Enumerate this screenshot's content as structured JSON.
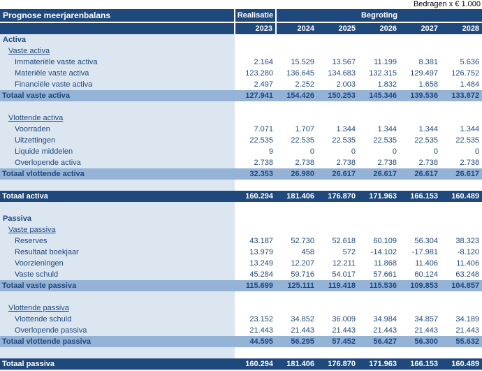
{
  "note": "Bedragen x € 1.000",
  "header": {
    "title": "Prognose meerjarenbalans",
    "realisatie": "Realisatie",
    "begroting": "Begroting",
    "years": [
      "2023",
      "2024",
      "2025",
      "2026",
      "2027",
      "2028"
    ]
  },
  "colors": {
    "dark_blue": "#1F497D",
    "band_blue": "#95B3D7",
    "light_blue": "#DCE6F1",
    "header_text": "#FFFFFF",
    "body_text": "#1F497D"
  },
  "rows": [
    {
      "type": "section",
      "label": "Activa",
      "values": [
        "",
        "",
        "",
        "",
        "",
        ""
      ]
    },
    {
      "type": "subheader",
      "label": "Vaste activa",
      "values": [
        "",
        "",
        "",
        "",
        "",
        ""
      ]
    },
    {
      "type": "item",
      "label": "Immateriële vaste activa",
      "values": [
        "2.164",
        "15.529",
        "13.567",
        "11.199",
        "8.381",
        "5.636"
      ]
    },
    {
      "type": "item",
      "label": "Materiële vaste activa",
      "values": [
        "123.280",
        "136.645",
        "134.683",
        "132.315",
        "129.497",
        "126.752"
      ]
    },
    {
      "type": "item",
      "label": "Financiële vaste activa",
      "values": [
        "2.497",
        "2.252",
        "2.003",
        "1.832",
        "1.658",
        "1.484"
      ]
    },
    {
      "type": "subtotal",
      "label": "Totaal vaste activa",
      "values": [
        "127.941",
        "154.426",
        "150.253",
        "145.346",
        "139.536",
        "133.872"
      ]
    },
    {
      "type": "spacer",
      "label": "",
      "values": [
        "",
        "",
        "",
        "",
        "",
        ""
      ]
    },
    {
      "type": "subheader",
      "label": "Vlottende activa",
      "values": [
        "",
        "",
        "",
        "",
        "",
        ""
      ]
    },
    {
      "type": "item",
      "label": "Voorraden",
      "values": [
        "7.071",
        "1.707",
        "1.344",
        "1.344",
        "1.344",
        "1.344"
      ]
    },
    {
      "type": "item",
      "label": "Uitzettingen",
      "values": [
        "22.535",
        "22.535",
        "22.535",
        "22.535",
        "22.535",
        "22.535"
      ]
    },
    {
      "type": "item",
      "label": "Liquide middelen",
      "values": [
        "9",
        "0",
        "0",
        "0",
        "0",
        "0"
      ]
    },
    {
      "type": "item",
      "label": "Overlopende activa",
      "values": [
        "2.738",
        "2.738",
        "2.738",
        "2.738",
        "2.738",
        "2.738"
      ]
    },
    {
      "type": "subtotal",
      "label": "Totaal vlottende activa",
      "values": [
        "32.353",
        "26.980",
        "26.617",
        "26.617",
        "26.617",
        "26.617"
      ]
    },
    {
      "type": "spacer",
      "label": "",
      "values": [
        "",
        "",
        "",
        "",
        "",
        ""
      ]
    },
    {
      "type": "grandtotal",
      "label": "Totaal activa",
      "values": [
        "160.294",
        "181.406",
        "176.870",
        "171.963",
        "166.153",
        "160.489"
      ]
    },
    {
      "type": "spacer",
      "label": "",
      "values": [
        "",
        "",
        "",
        "",
        "",
        ""
      ]
    },
    {
      "type": "section",
      "label": "Passiva",
      "values": [
        "",
        "",
        "",
        "",
        "",
        ""
      ]
    },
    {
      "type": "subheader",
      "label": "Vaste passiva",
      "values": [
        "",
        "",
        "",
        "",
        "",
        ""
      ]
    },
    {
      "type": "item",
      "label": "Reserves",
      "values": [
        "43.187",
        "52.730",
        "52.618",
        "60.109",
        "56.304",
        "38.323"
      ]
    },
    {
      "type": "item",
      "label": "Resultaat boekjaar",
      "values": [
        "13.979",
        "458",
        "572",
        "-14.102",
        "-17.981",
        "-8.120"
      ]
    },
    {
      "type": "item",
      "label": "Voorzieningen",
      "values": [
        "13.249",
        "12.207",
        "12.211",
        "11.868",
        "11.406",
        "11.406"
      ]
    },
    {
      "type": "item",
      "label": "Vaste schuld",
      "values": [
        "45.284",
        "59.716",
        "54.017",
        "57.661",
        "60.124",
        "63.248"
      ]
    },
    {
      "type": "subtotal",
      "label": "Totaal vaste passiva",
      "values": [
        "115.699",
        "125.111",
        "119.418",
        "115.536",
        "109.853",
        "104.857"
      ]
    },
    {
      "type": "spacer",
      "label": "",
      "values": [
        "",
        "",
        "",
        "",
        "",
        ""
      ]
    },
    {
      "type": "subheader",
      "label": "Vlottende passiva",
      "values": [
        "",
        "",
        "",
        "",
        "",
        ""
      ]
    },
    {
      "type": "item",
      "label": "Vlottende schuld",
      "values": [
        "23.152",
        "34.852",
        "36.009",
        "34.984",
        "34.857",
        "34.189"
      ]
    },
    {
      "type": "item",
      "label": "Overlopende passiva",
      "values": [
        "21.443",
        "21.443",
        "21.443",
        "21.443",
        "21.443",
        "21.443"
      ]
    },
    {
      "type": "subtotal",
      "label": "Totaal vlottende passiva",
      "values": [
        "44.595",
        "56.295",
        "57.452",
        "56.427",
        "56.300",
        "55.632"
      ]
    },
    {
      "type": "spacer",
      "label": "",
      "values": [
        "",
        "",
        "",
        "",
        "",
        ""
      ]
    },
    {
      "type": "grandtotal",
      "label": "Totaal passiva",
      "values": [
        "160.294",
        "181.406",
        "176.870",
        "171.963",
        "166.153",
        "160.489"
      ]
    }
  ]
}
